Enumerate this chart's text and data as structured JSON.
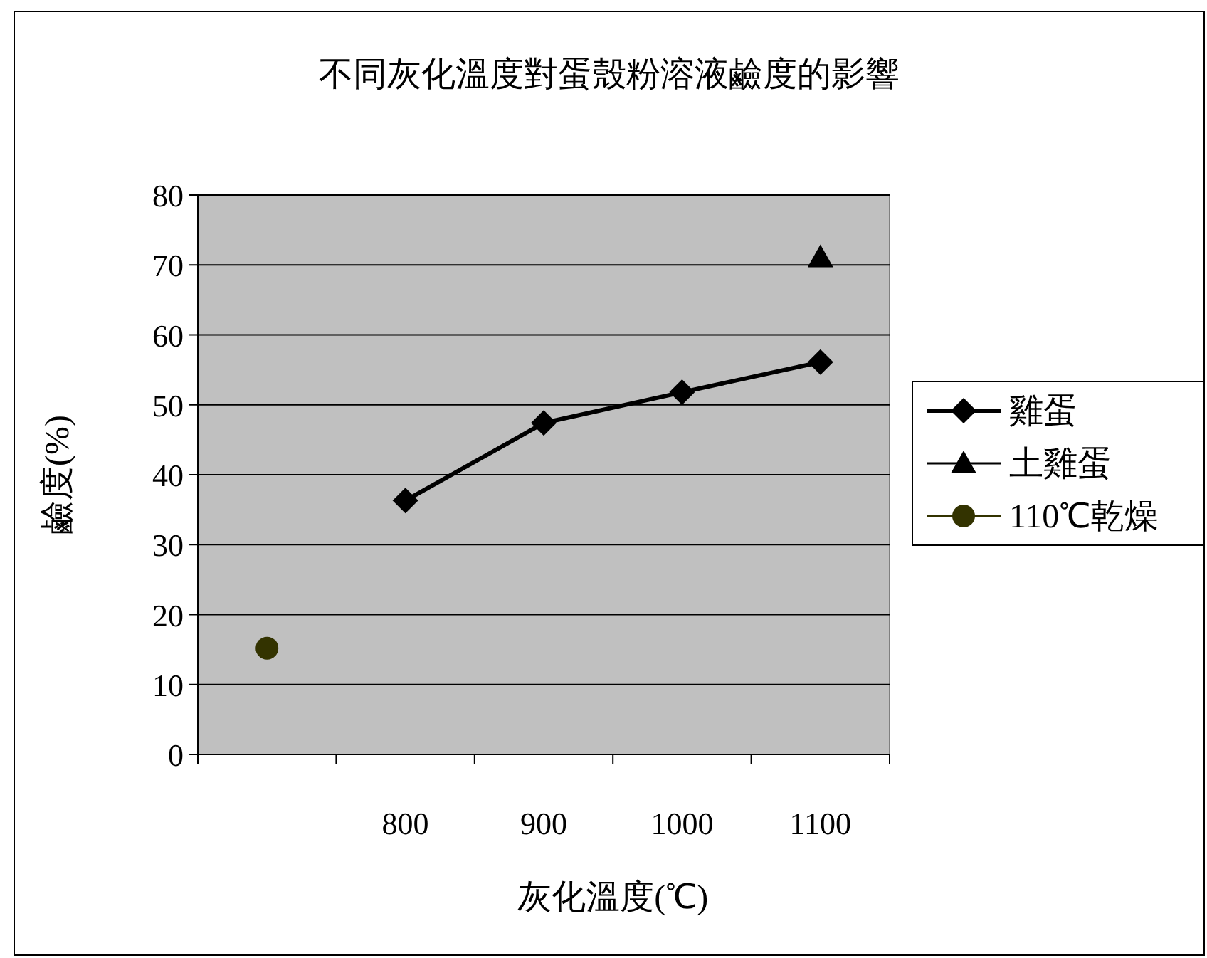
{
  "chart_data": {
    "type": "line",
    "title": "不同灰化溫度對蛋殼粉溶液鹼度的影響",
    "xlabel": "灰化溫度(℃)",
    "ylabel": "鹼度(%)",
    "categories": [
      null,
      "800",
      "900",
      "1000",
      "1100"
    ],
    "series": [
      {
        "name": "雞蛋",
        "color": "#000000",
        "marker": "diamond",
        "values": [
          null,
          36.3,
          47.4,
          51.8,
          56.1
        ]
      },
      {
        "name": "土雞蛋",
        "color": "#000000",
        "marker": "triangle",
        "values": [
          null,
          null,
          null,
          null,
          71.1
        ]
      },
      {
        "name": "110℃乾燥",
        "color": "#333300",
        "marker": "circle",
        "values": [
          15.2,
          null,
          null,
          null,
          null
        ]
      }
    ],
    "ylim": [
      0,
      80
    ],
    "yticks": [
      0,
      10,
      20,
      30,
      40,
      50,
      60,
      70,
      80
    ],
    "grid": "y",
    "legend": "right"
  }
}
